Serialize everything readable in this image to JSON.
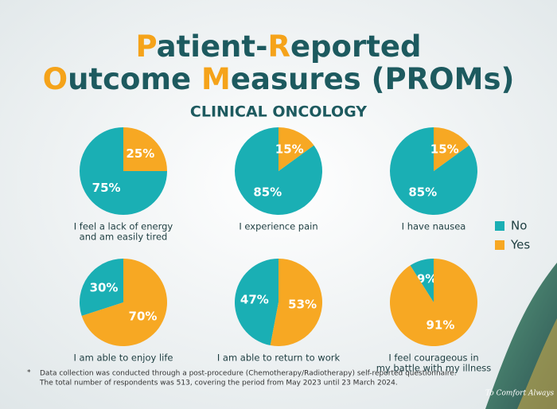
{
  "title": [
    "Patient-Reported",
    "Outcome Measures (PROMs)"
  ],
  "subtitle": "CLINICAL ONCOLOGY",
  "footnote_marker": "*",
  "footnote": [
    "Data collection was conducted through a post-procedure (Chemotherapy/Radiotherapy) self-reported questionnaire.",
    "The total number of respondents was 513, covering the period from May 2023 until 23 March 2024."
  ],
  "signature": "To Comfort Always",
  "accent_color": "#f5a31a",
  "chart_data": [
    {
      "type": "pie",
      "title": [
        "I feel a lack of energy",
        "and am easily tired"
      ],
      "categories": [
        "No",
        "Yes"
      ],
      "values": [
        75,
        25
      ],
      "value_labels": [
        "75%",
        "25%"
      ],
      "colors": [
        "#1aafb4",
        "#f7a823"
      ],
      "legend": "right"
    },
    {
      "type": "pie",
      "title": [
        "I experience pain"
      ],
      "categories": [
        "No",
        "Yes"
      ],
      "values": [
        85,
        15
      ],
      "value_labels": [
        "85%",
        "15%"
      ],
      "colors": [
        "#1aafb4",
        "#f7a823"
      ]
    },
    {
      "type": "pie",
      "title": [
        "I have nausea"
      ],
      "categories": [
        "No",
        "Yes"
      ],
      "values": [
        85,
        15
      ],
      "value_labels": [
        "85%",
        "15%"
      ],
      "colors": [
        "#1aafb4",
        "#f7a823"
      ]
    },
    {
      "type": "pie",
      "title": [
        "I am able to enjoy life"
      ],
      "categories": [
        "No",
        "Yes"
      ],
      "values": [
        30,
        70
      ],
      "value_labels": [
        "30%",
        "70%"
      ],
      "colors": [
        "#1aafb4",
        "#f7a823"
      ]
    },
    {
      "type": "pie",
      "title": [
        "I am able to return to work"
      ],
      "categories": [
        "No",
        "Yes"
      ],
      "values": [
        47,
        53
      ],
      "value_labels": [
        "47%",
        "53%"
      ],
      "colors": [
        "#1aafb4",
        "#f7a823"
      ]
    },
    {
      "type": "pie",
      "title": [
        "I feel courageous in",
        "my battle with my illness"
      ],
      "categories": [
        "No",
        "Yes"
      ],
      "values": [
        9,
        91
      ],
      "value_labels": [
        "9%",
        "91%"
      ],
      "colors": [
        "#1aafb4",
        "#f7a823"
      ]
    }
  ]
}
